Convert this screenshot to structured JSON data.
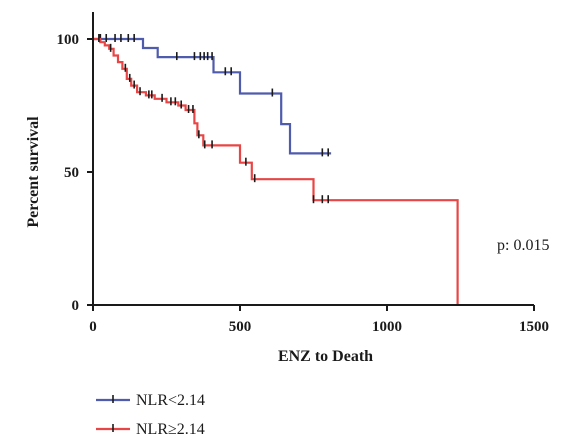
{
  "chart_data": {
    "type": "line",
    "subtype": "kaplan-meier-step",
    "xlabel": "ENZ to Death",
    "ylabel": "Percent survival",
    "xlim": [
      0,
      1500
    ],
    "ylim": [
      0,
      100
    ],
    "xticks": [
      "0",
      "500",
      "1000",
      "1500"
    ],
    "yticks": [
      "0",
      "50",
      "100"
    ],
    "grid": false,
    "legend_position": "bottom-left",
    "annotation": "p: 0.015",
    "series": [
      {
        "name": "NLR<2.14",
        "color": "#4f5bad",
        "points": [
          [
            0,
            100
          ],
          [
            170,
            100
          ],
          [
            170,
            96.6
          ],
          [
            220,
            96.6
          ],
          [
            220,
            93.2
          ],
          [
            410,
            93.2
          ],
          [
            410,
            87.5
          ],
          [
            500,
            87.5
          ],
          [
            500,
            79.5
          ],
          [
            640,
            79.5
          ],
          [
            640,
            68
          ],
          [
            670,
            68
          ],
          [
            670,
            57
          ],
          [
            810,
            57
          ]
        ],
        "censors": [
          [
            25,
            100
          ],
          [
            45,
            100
          ],
          [
            75,
            100
          ],
          [
            95,
            100
          ],
          [
            120,
            100
          ],
          [
            140,
            100
          ],
          [
            285,
            93.2
          ],
          [
            345,
            93.2
          ],
          [
            365,
            93.2
          ],
          [
            378,
            93.2
          ],
          [
            390,
            93.2
          ],
          [
            405,
            93.2
          ],
          [
            450,
            87.5
          ],
          [
            470,
            87.5
          ],
          [
            610,
            79.5
          ],
          [
            780,
            57
          ],
          [
            800,
            57
          ]
        ]
      },
      {
        "name": "NLR≥2.14",
        "color": "#e84646",
        "points": [
          [
            0,
            100
          ],
          [
            25,
            100
          ],
          [
            25,
            98.8
          ],
          [
            40,
            98.8
          ],
          [
            40,
            97.6
          ],
          [
            55,
            97.6
          ],
          [
            55,
            96.3
          ],
          [
            70,
            96.3
          ],
          [
            70,
            93.8
          ],
          [
            85,
            93.8
          ],
          [
            85,
            91.3
          ],
          [
            100,
            91.3
          ],
          [
            100,
            88.8
          ],
          [
            115,
            88.8
          ],
          [
            115,
            85
          ],
          [
            130,
            85
          ],
          [
            130,
            82.5
          ],
          [
            150,
            82.5
          ],
          [
            150,
            80
          ],
          [
            180,
            80
          ],
          [
            180,
            78.8
          ],
          [
            210,
            78.8
          ],
          [
            210,
            77.5
          ],
          [
            250,
            77.5
          ],
          [
            250,
            76.2
          ],
          [
            290,
            76.2
          ],
          [
            290,
            75
          ],
          [
            315,
            75
          ],
          [
            315,
            73.3
          ],
          [
            345,
            73.3
          ],
          [
            345,
            68.3
          ],
          [
            355,
            68.3
          ],
          [
            355,
            63.8
          ],
          [
            375,
            63.8
          ],
          [
            375,
            60
          ],
          [
            500,
            60
          ],
          [
            500,
            53.5
          ],
          [
            540,
            53.5
          ],
          [
            540,
            47.3
          ],
          [
            750,
            47.3
          ],
          [
            750,
            39.4
          ],
          [
            1240,
            39.4
          ],
          [
            1240,
            0
          ]
        ],
        "censors": [
          [
            20,
            100
          ],
          [
            60,
            96.3
          ],
          [
            110,
            88.8
          ],
          [
            125,
            85
          ],
          [
            140,
            82.5
          ],
          [
            160,
            80
          ],
          [
            190,
            78.8
          ],
          [
            200,
            78.8
          ],
          [
            235,
            77.5
          ],
          [
            265,
            76.2
          ],
          [
            280,
            76.2
          ],
          [
            300,
            75
          ],
          [
            325,
            73.3
          ],
          [
            340,
            73.3
          ],
          [
            360,
            63.8
          ],
          [
            380,
            60
          ],
          [
            405,
            60
          ],
          [
            520,
            53.5
          ],
          [
            550,
            47.3
          ],
          [
            750,
            39.4
          ],
          [
            780,
            39.4
          ],
          [
            800,
            39.4
          ]
        ]
      }
    ]
  }
}
